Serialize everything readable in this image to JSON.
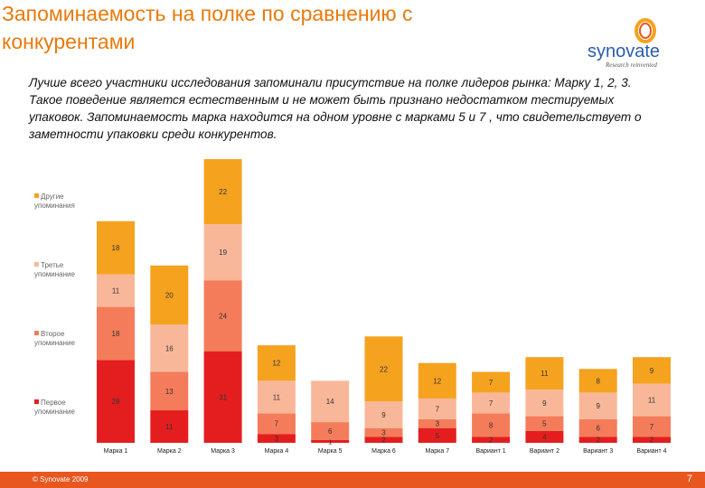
{
  "title": "Запоминаемость на полке по сравнению с конкурентами",
  "logo": {
    "name": "synovate",
    "tagline": "Research reinvented"
  },
  "description": "Лучше всего участники исследования запоминали присутствие на полке лидеров рынка: Марку 1, 2, 3. Такое поведение является естественным и не может быть признано недостатком тестируемых упаковок. Запоминаемость марка   находится на одном уровне с марками 5 и 7  , что свидетельствует о заметности упаковки среди конкурентов.",
  "footer": {
    "copyright": "© Synovate 2009",
    "page": "7"
  },
  "colors": {
    "first": "#e41e1e",
    "second": "#f47c5a",
    "third": "#f9b79a",
    "other": "#f5a21f",
    "footer": "#e8571f"
  },
  "chart_data": {
    "type": "bar",
    "stacked": true,
    "categories": [
      "Марка 1",
      "Марка 2",
      "Марка 3",
      "Марка 4",
      "Марка 5",
      "Марка 6",
      "Марка 7",
      "Вариант 1",
      "Вариант 2",
      "Вариант 3",
      "Вариант 4"
    ],
    "series": [
      {
        "name": "Первое упоминание",
        "key": "first",
        "values": [
          28,
          11,
          31,
          3,
          1,
          2,
          5,
          2,
          4,
          2,
          2
        ]
      },
      {
        "name": "Второе упоминание",
        "key": "second",
        "values": [
          18,
          13,
          24,
          7,
          6,
          3,
          3,
          8,
          5,
          6,
          7
        ]
      },
      {
        "name": "Третье упоминание",
        "key": "third",
        "values": [
          11,
          16,
          19,
          11,
          14,
          9,
          7,
          7,
          9,
          9,
          11
        ]
      },
      {
        "name": "Другие упоминания",
        "key": "other",
        "values": [
          18,
          20,
          22,
          12,
          0,
          22,
          12,
          7,
          11,
          8,
          9
        ]
      }
    ],
    "legend_position": "left",
    "ylim": [
      0,
      100
    ]
  }
}
